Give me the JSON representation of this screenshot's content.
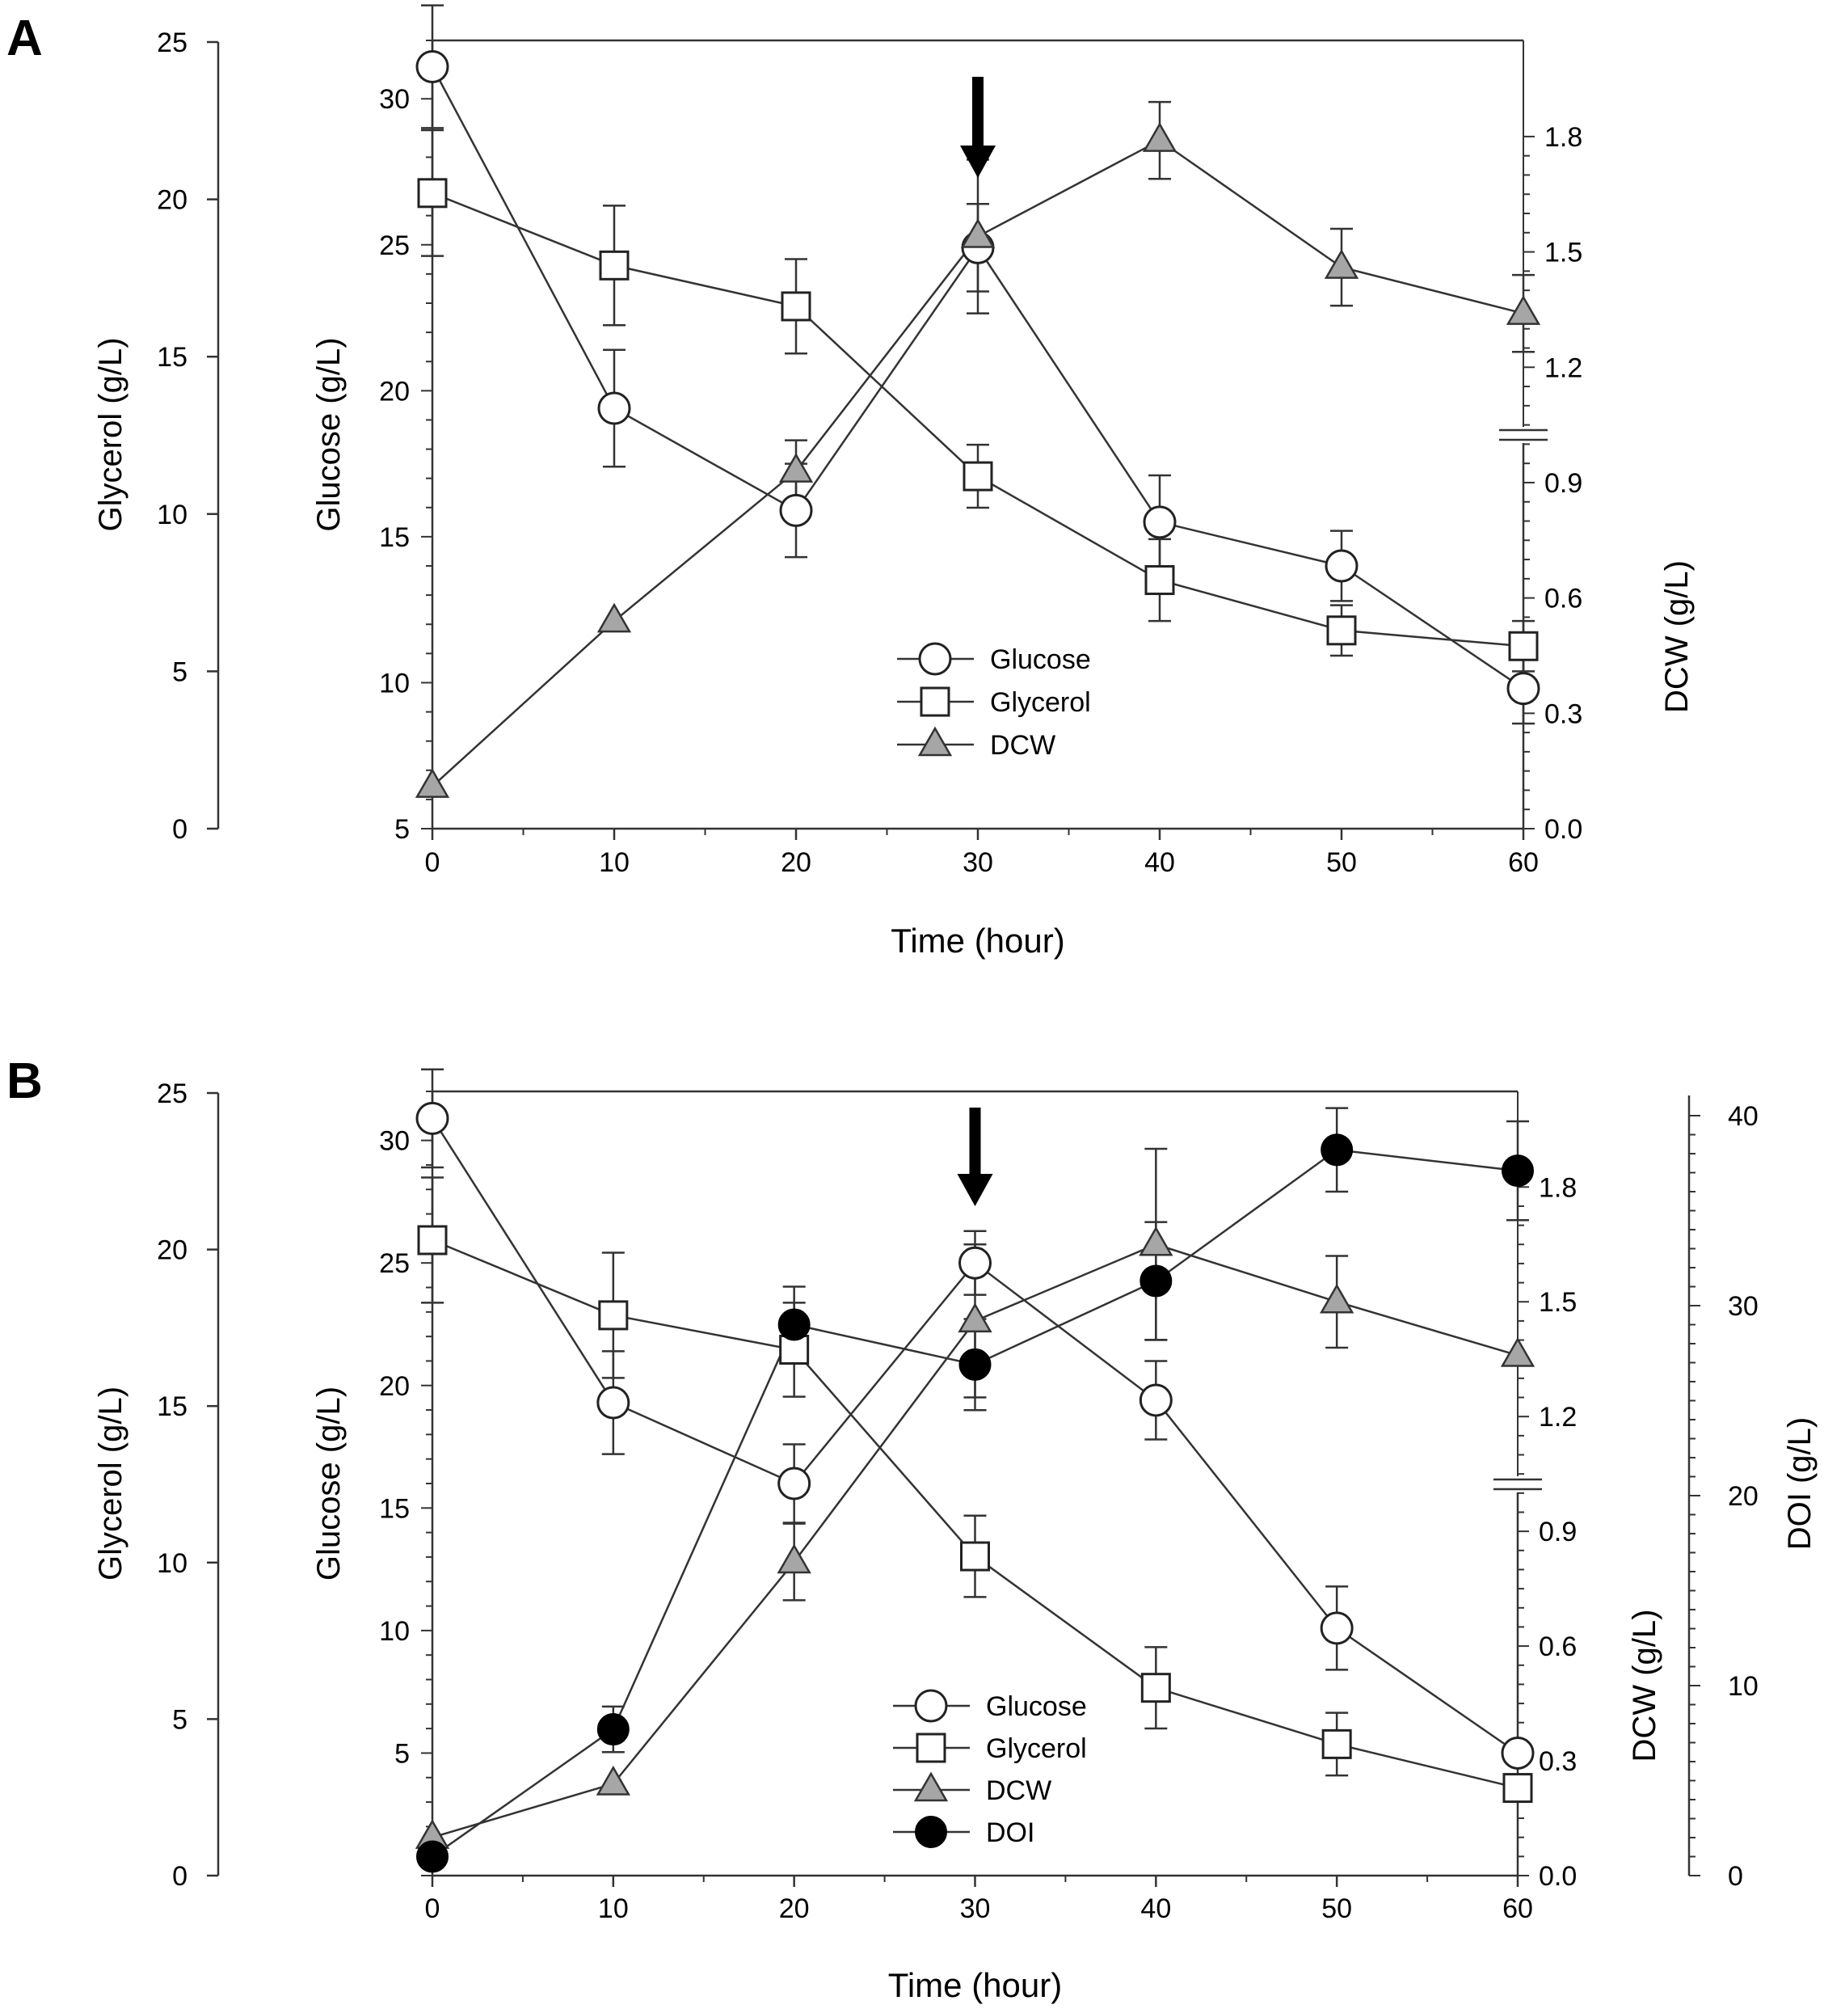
{
  "chart_data": [
    {
      "panel": "A",
      "type": "line",
      "x": [
        0,
        10,
        20,
        30,
        40,
        50,
        60
      ],
      "xlabel": "Time (hour)",
      "xlim": [
        0,
        60
      ],
      "xticks": [
        "0",
        "10",
        "20",
        "30",
        "40",
        "50",
        "60"
      ],
      "axes": {
        "glycerol": {
          "label": "Glycerol (g/L)",
          "lim": [
            0,
            25
          ],
          "ticks": [
            "0",
            "5",
            "10",
            "15",
            "20",
            "25"
          ]
        },
        "glucose": {
          "label": "Glucose (g/L)",
          "lim": [
            5,
            32
          ],
          "ticks": [
            "5",
            "10",
            "15",
            "20",
            "25",
            "30"
          ]
        },
        "dcw": {
          "label": "DCW (g/L)",
          "lim": [
            0,
            2.05
          ],
          "ticks": [
            "0.0",
            "0.3",
            "0.6",
            "0.9",
            "1.2",
            "1.5",
            "1.8"
          ]
        }
      },
      "series": [
        {
          "name": "Glucose",
          "axis": "glucose",
          "marker": "circle-open",
          "values": [
            31.1,
            19.4,
            15.9,
            24.9,
            15.5,
            14.0,
            9.8
          ],
          "errors": [
            2.1,
            2.0,
            1.6,
            1.5,
            1.6,
            1.2,
            1.2
          ]
        },
        {
          "name": "Glycerol",
          "axis": "glycerol",
          "marker": "square-open",
          "values": [
            20.2,
            17.9,
            16.6,
            11.2,
            7.9,
            6.3,
            5.8
          ],
          "errors": [
            2.0,
            1.9,
            1.5,
            1.0,
            1.3,
            0.8,
            0.8
          ]
        },
        {
          "name": "DCW",
          "axis": "dcw",
          "marker": "triangle-gray",
          "values": [
            0.11,
            0.54,
            0.93,
            1.54,
            1.79,
            1.46,
            1.34
          ],
          "errors": [
            0.0,
            0.0,
            0.08,
            0.2,
            0.1,
            0.1,
            0.1
          ]
        }
      ],
      "annotations": {
        "arrow_at_x": 30
      }
    },
    {
      "panel": "B",
      "type": "line",
      "x": [
        0,
        10,
        20,
        30,
        40,
        50,
        60
      ],
      "xlabel": "Time (hour)",
      "xlim": [
        0,
        60
      ],
      "xticks": [
        "0",
        "10",
        "20",
        "30",
        "40",
        "50",
        "60"
      ],
      "axes": {
        "glycerol": {
          "label": "Glycerol (g/L)",
          "lim": [
            0,
            25
          ],
          "ticks": [
            "0",
            "5",
            "10",
            "15",
            "20",
            "25"
          ]
        },
        "glucose": {
          "label": "Glucose (g/L)",
          "lim": [
            0,
            32
          ],
          "ticks": [
            "5",
            "10",
            "15",
            "20",
            "25",
            "30"
          ]
        },
        "dcw": {
          "label": "DCW (g/L)",
          "lim": [
            0,
            2.05
          ],
          "ticks": [
            "0.0",
            "0.3",
            "0.6",
            "0.9",
            "1.2",
            "1.5",
            "1.8"
          ]
        },
        "doi": {
          "label": "DOI (g/L)",
          "lim": [
            0,
            40
          ],
          "ticks": [
            "0",
            "10",
            "20",
            "30",
            "40"
          ]
        }
      },
      "series": [
        {
          "name": "Glucose",
          "axis": "glucose",
          "marker": "circle-open",
          "values": [
            30.9,
            19.3,
            16.0,
            25.0,
            19.4,
            10.1,
            5.0
          ],
          "errors": [
            2.0,
            2.1,
            1.6,
            1.3,
            1.6,
            1.7,
            0.0
          ]
        },
        {
          "name": "Glycerol",
          "axis": "glycerol",
          "marker": "square-open",
          "values": [
            20.3,
            17.9,
            16.8,
            10.2,
            6.0,
            4.2,
            2.8
          ],
          "errors": [
            2.0,
            2.0,
            1.5,
            1.3,
            1.3,
            1.0,
            0.0
          ]
        },
        {
          "name": "DCW",
          "axis": "dcw",
          "marker": "triangle-gray",
          "values": [
            0.1,
            0.24,
            0.82,
            1.45,
            1.65,
            1.5,
            1.36
          ],
          "errors": [
            0.0,
            0.0,
            0.1,
            0.2,
            0.25,
            0.12,
            0.0
          ]
        },
        {
          "name": "DOI",
          "axis": "doi",
          "marker": "circle-filled",
          "values": [
            1.0,
            7.7,
            29.0,
            26.9,
            31.3,
            38.2,
            37.1
          ],
          "errors": [
            0.0,
            1.2,
            2.0,
            2.4,
            3.1,
            2.2,
            2.6
          ]
        }
      ],
      "annotations": {
        "arrow_at_x": 30
      }
    }
  ],
  "panel_labels": [
    "A",
    "B"
  ]
}
